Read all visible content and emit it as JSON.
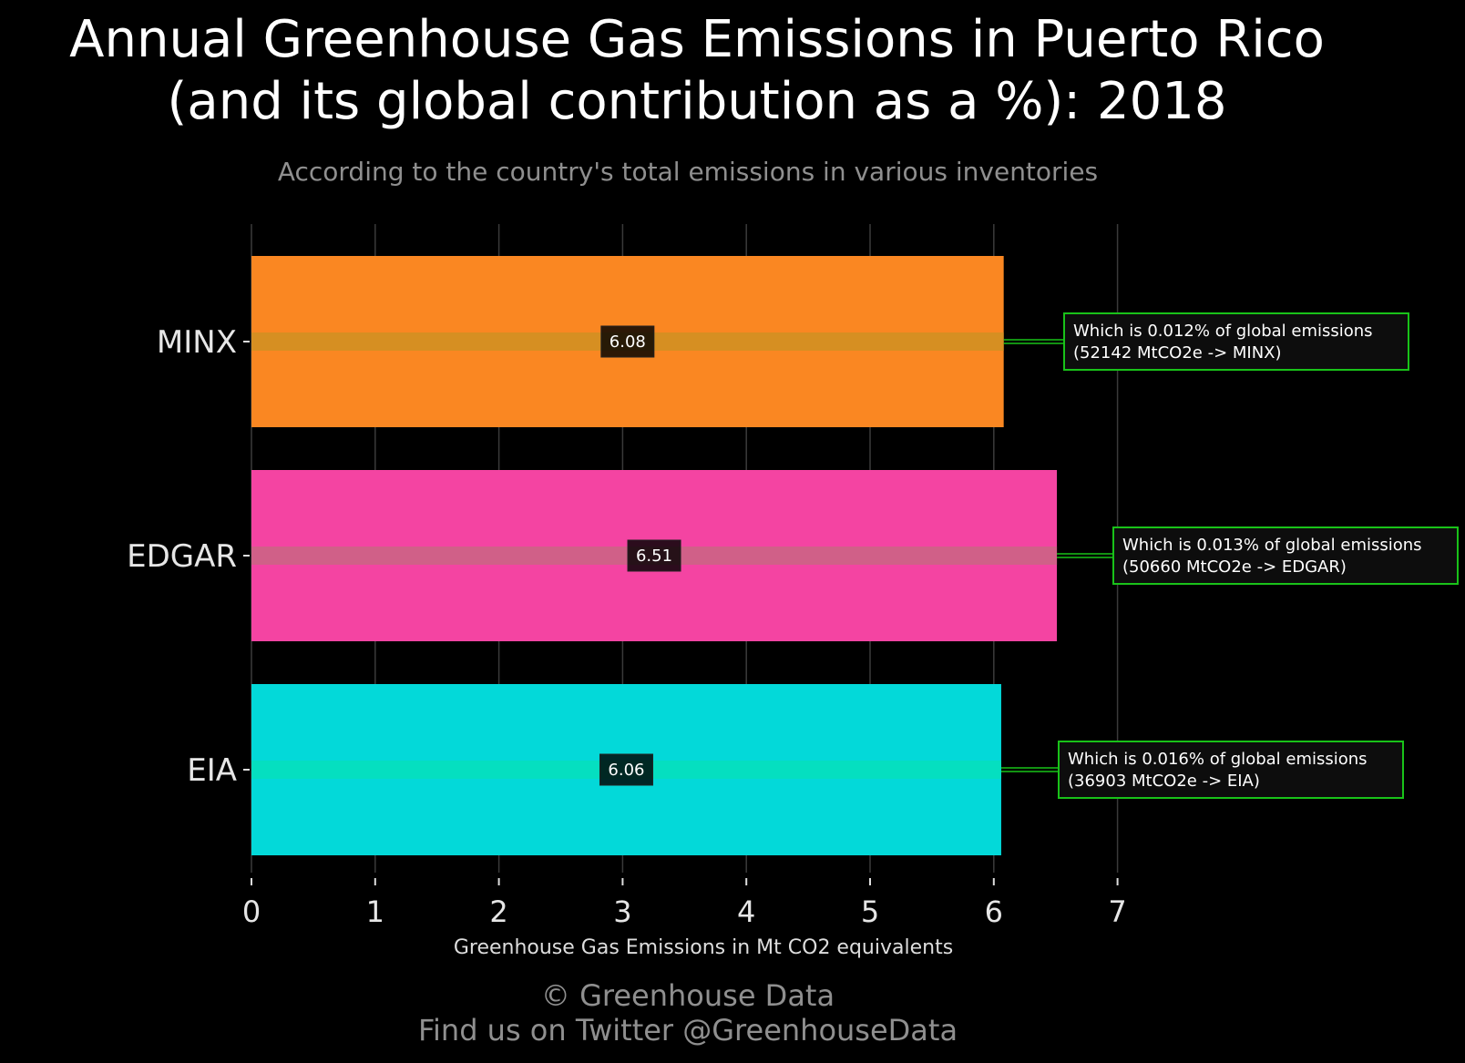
{
  "title_lines": [
    "Annual Greenhouse Gas Emissions in Puerto Rico",
    "(and its global contribution as a %): 2018"
  ],
  "subtitle": "According to the country's total emissions in various inventories",
  "footer_lines": [
    "© Greenhouse Data",
    "Find us on Twitter @GreenhouseData"
  ],
  "chart_data": {
    "type": "bar",
    "orientation": "horizontal",
    "categories": [
      "MINX",
      "EDGAR",
      "EIA"
    ],
    "values": [
      6.08,
      6.51,
      6.06
    ],
    "value_labels": [
      "6.08",
      "6.51",
      "6.06"
    ],
    "colors": [
      "#fa8722",
      "#f444a2",
      "#03d9d9"
    ],
    "stripe_colors": [
      "#d68f22",
      "#d06088",
      "#05dfc0"
    ],
    "annotations": [
      [
        "Which is 0.012% of global emissions",
        "(52142 MtCO2e -> MINX)"
      ],
      [
        "Which is 0.013% of global emissions",
        "(50660 MtCO2e -> EDGAR)"
      ],
      [
        "Which is 0.016% of global emissions",
        "(36903 MtCO2e -> EIA)"
      ]
    ],
    "annotation_color": "#19c219",
    "xlabel": "Greenhouse Gas Emissions in Mt CO2 equivalents",
    "ylabel": "",
    "xlim": [
      0,
      7
    ],
    "xticks": [
      0,
      1,
      2,
      3,
      4,
      5,
      6,
      7
    ],
    "xtick_labels": [
      "0",
      "1",
      "2",
      "3",
      "4",
      "5",
      "6",
      "7"
    ],
    "grid": true
  }
}
